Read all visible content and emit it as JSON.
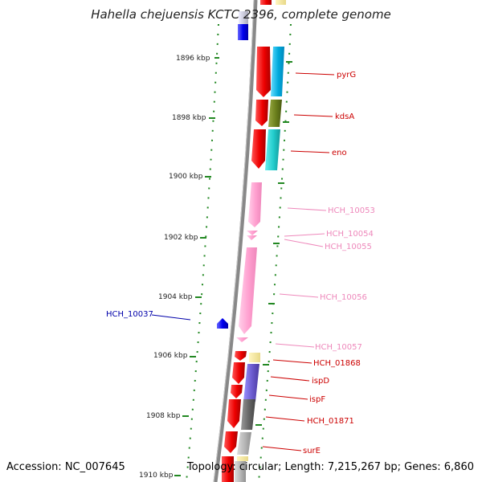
{
  "title": "Hahella chejuensis KCTC 2396, complete genome",
  "footer": {
    "accession": "Accession: NC_007645",
    "summary": "Topology: circular; Length: 7,215,267 bp; Genes: 6,860"
  },
  "ruler_ticks": [
    {
      "label": "1896 kbp"
    },
    {
      "label": "1898 kbp"
    },
    {
      "label": "1900 kbp"
    },
    {
      "label": "1902 kbp"
    },
    {
      "label": "1904 kbp"
    },
    {
      "label": "1906 kbp"
    },
    {
      "label": "1908 kbp"
    },
    {
      "label": "1910 kbp"
    }
  ],
  "gene_labels": [
    {
      "name": "pyrG",
      "color": "#cc0000"
    },
    {
      "name": "kdsA",
      "color": "#cc0000"
    },
    {
      "name": "eno",
      "color": "#cc0000"
    },
    {
      "name": "HCH_10053",
      "color": "#ee88bb"
    },
    {
      "name": "HCH_10054",
      "color": "#ee88bb"
    },
    {
      "name": "HCH_10055",
      "color": "#ee88bb"
    },
    {
      "name": "HCH_10056",
      "color": "#ee88bb"
    },
    {
      "name": "HCH_10037",
      "color": "#0000aa"
    },
    {
      "name": "HCH_10057",
      "color": "#ee88bb"
    },
    {
      "name": "HCH_01868",
      "color": "#cc0000"
    },
    {
      "name": "ispD",
      "color": "#cc0000"
    },
    {
      "name": "ispF",
      "color": "#cc0000"
    },
    {
      "name": "HCH_01871",
      "color": "#cc0000"
    },
    {
      "name": "surE",
      "color": "#cc0000"
    }
  ],
  "colors": {
    "backbone": "#8a8a8a",
    "ruler_dots": "#228822",
    "cds_red": "#ee1111",
    "rna_pink": "#ffaad4",
    "reverse_blue": "#0000ee"
  }
}
